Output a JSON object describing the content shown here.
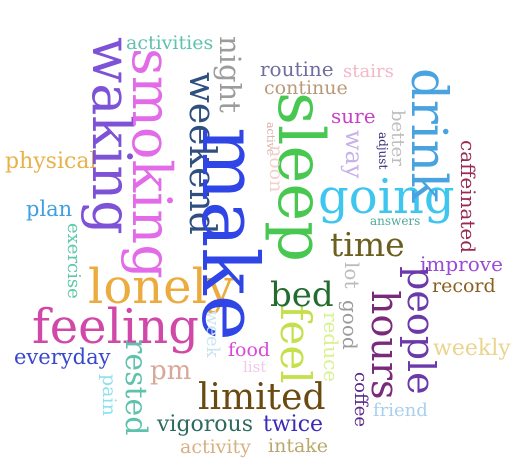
{
  "words": {
    "activities": "activities",
    "waking": "waking",
    "smoking": "smoking",
    "night": "night",
    "weekend": "weekend",
    "make": "make",
    "routine": "routine",
    "stairs": "stairs",
    "continue": "continue",
    "drink": "drink",
    "sleep": "sleep",
    "sure": "sure",
    "better": "better",
    "active": "active",
    "adjust": "adjust",
    "way": "way",
    "noon": "noon",
    "caffeinated": "caffeinated",
    "physical": "physical",
    "going": "going",
    "plan": "plan",
    "answers": "answers",
    "exercise": "exercise",
    "time": "time",
    "improve": "improve",
    "lonely": "lonely",
    "lot": "lot",
    "good": "good",
    "people": "people",
    "record": "record",
    "bed": "bed",
    "hours": "hours",
    "feeling": "feeling",
    "feel": "feel",
    "week": "week",
    "reduce": "reduce",
    "weekly": "weekly",
    "everyday": "everyday",
    "food": "food",
    "rested": "rested",
    "pm": "pm",
    "list": "list",
    "coffee": "coffee",
    "pain": "pain",
    "limited": "limited",
    "friend": "friend",
    "vigorous": "vigorous",
    "twice": "twice",
    "activity": "activity",
    "intake": "intake"
  },
  "colors": {
    "activities": "#5ec2ad",
    "waking": "#7e52d6",
    "smoking": "#e26be8",
    "night": "#9c9c9c",
    "weekend": "#2f4f7f",
    "make": "#2f45e6",
    "routine": "#6f6f9f",
    "stairs": "#f3b7c7",
    "continue": "#b89a78",
    "drink": "#49a3e0",
    "sleep": "#48c850",
    "sure": "#c840c8",
    "better": "#bdbdbd",
    "active": "#d8b0a8",
    "adjust": "#3a2a78",
    "way": "#c9b2e6",
    "noon": "#f2d0cc",
    "caffeinated": "#9a2a54",
    "physical": "#e8b24a",
    "going": "#3fc6ef",
    "plan": "#3f9fe0",
    "answers": "#4ea89a",
    "exercise": "#5ec8a8",
    "time": "#6b5e1e",
    "improve": "#9a4ad6",
    "lonely": "#ecab3e",
    "lot": "#bcbcbc",
    "good": "#9c9c9c",
    "people": "#6b3aa8",
    "record": "#8a5e1e",
    "bed": "#236b2e",
    "hours": "#7a2a7a",
    "feeling": "#d048a8",
    "feel": "#c4e04a",
    "week": "#c8e4f0",
    "reduce": "#d8f290",
    "weekly": "#ead48e",
    "everyday": "#3848cc",
    "food": "#d848d8",
    "rested": "#5ec2ad",
    "pm": "#d8a898",
    "list": "#f2c8e8",
    "coffee": "#5a2a8a",
    "pain": "#8ee2ee",
    "limited": "#6a4a10",
    "friend": "#a8d0ee",
    "vigorous": "#2e6b5e",
    "twice": "#3a2ab8",
    "activity": "#d8b080",
    "intake": "#b8a86e"
  }
}
